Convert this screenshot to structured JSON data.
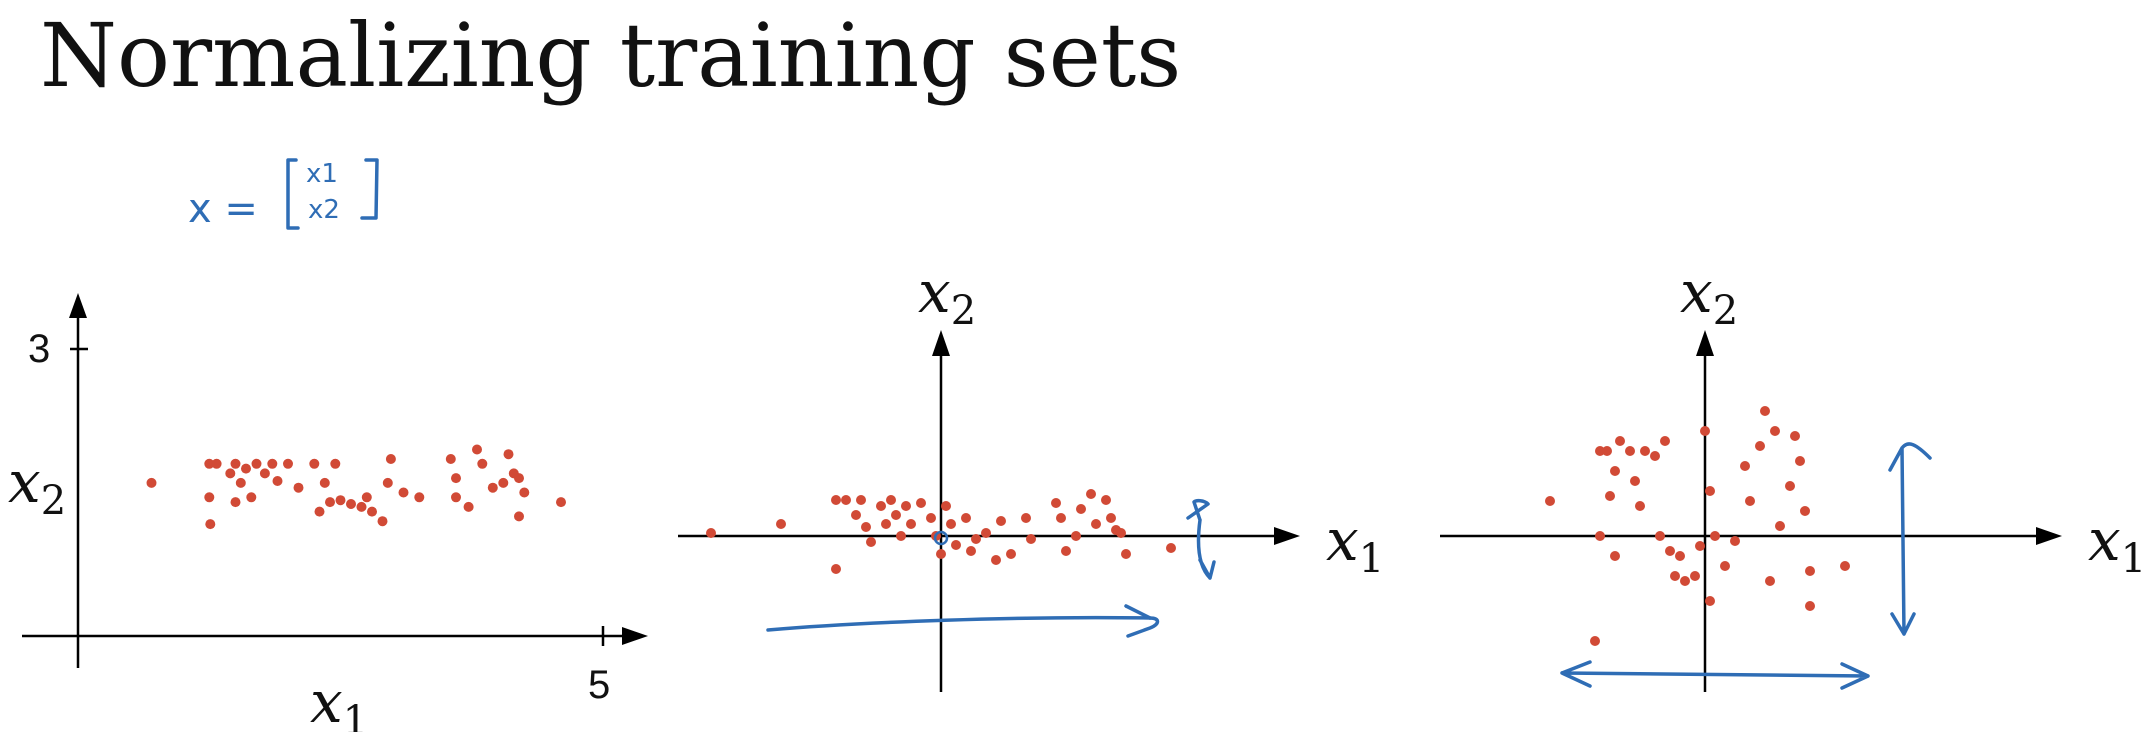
{
  "title": "Normalizing training sets",
  "annotation": {
    "lhs": "x =",
    "row1": "x1",
    "row2": "x2"
  },
  "panels": [
    {
      "x_label": "x",
      "x_sub": "1",
      "y_label": "x",
      "y_sub": "2",
      "x_tick": "5",
      "y_tick": "3"
    },
    {
      "x_label": "x",
      "x_sub": "1",
      "y_label": "x",
      "y_sub": "2"
    },
    {
      "x_label": "x",
      "x_sub": "1",
      "y_label": "x",
      "y_sub": "2"
    }
  ],
  "chart_data": [
    {
      "type": "scatter",
      "title": "",
      "xlabel": "x1",
      "ylabel": "x2",
      "xlim": [
        0,
        5
      ],
      "ylim": [
        0,
        3
      ],
      "points": [
        [
          0.7,
          1.6
        ],
        [
          1.25,
          1.8
        ],
        [
          1.32,
          1.8
        ],
        [
          1.25,
          1.45
        ],
        [
          1.26,
          1.17
        ],
        [
          1.45,
          1.7
        ],
        [
          1.5,
          1.8
        ],
        [
          1.55,
          1.6
        ],
        [
          1.6,
          1.75
        ],
        [
          1.7,
          1.8
        ],
        [
          1.78,
          1.7
        ],
        [
          1.85,
          1.8
        ],
        [
          1.9,
          1.62
        ],
        [
          2.0,
          1.8
        ],
        [
          2.1,
          1.55
        ],
        [
          1.65,
          1.45
        ],
        [
          1.5,
          1.4
        ],
        [
          2.25,
          1.8
        ],
        [
          2.35,
          1.6
        ],
        [
          2.45,
          1.8
        ],
        [
          2.3,
          1.3
        ],
        [
          2.4,
          1.4
        ],
        [
          2.5,
          1.42
        ],
        [
          2.6,
          1.38
        ],
        [
          2.7,
          1.35
        ],
        [
          2.8,
          1.3
        ],
        [
          2.75,
          1.45
        ],
        [
          2.9,
          1.2
        ],
        [
          2.95,
          1.6
        ],
        [
          2.98,
          1.85
        ],
        [
          3.1,
          1.5
        ],
        [
          3.25,
          1.45
        ],
        [
          3.55,
          1.85
        ],
        [
          3.6,
          1.65
        ],
        [
          3.6,
          1.45
        ],
        [
          3.72,
          1.35
        ],
        [
          3.8,
          1.95
        ],
        [
          3.85,
          1.8
        ],
        [
          3.95,
          1.55
        ],
        [
          4.05,
          1.6
        ],
        [
          4.1,
          1.9
        ],
        [
          4.15,
          1.7
        ],
        [
          4.2,
          1.65
        ],
        [
          4.25,
          1.5
        ],
        [
          4.2,
          1.25
        ],
        [
          4.6,
          1.4
        ]
      ]
    },
    {
      "type": "scatter",
      "title": "",
      "xlabel": "x1",
      "ylabel": "x2",
      "points": [
        [
          -2.3,
          0.05
        ],
        [
          -1.6,
          0.2
        ],
        [
          -1.05,
          0.6
        ],
        [
          -1.05,
          -0.55
        ],
        [
          -0.95,
          0.6
        ],
        [
          -0.85,
          0.35
        ],
        [
          -0.8,
          0.6
        ],
        [
          -0.75,
          0.15
        ],
        [
          -0.7,
          -0.1
        ],
        [
          -0.6,
          0.5
        ],
        [
          -0.55,
          0.2
        ],
        [
          -0.5,
          0.6
        ],
        [
          -0.45,
          0.35
        ],
        [
          -0.4,
          0.0
        ],
        [
          -0.35,
          0.5
        ],
        [
          -0.3,
          0.2
        ],
        [
          -0.2,
          0.55
        ],
        [
          -0.1,
          0.3
        ],
        [
          -0.05,
          0.0
        ],
        [
          0.0,
          -0.3
        ],
        [
          0.05,
          0.5
        ],
        [
          0.1,
          0.2
        ],
        [
          0.15,
          -0.15
        ],
        [
          0.25,
          0.3
        ],
        [
          0.3,
          -0.25
        ],
        [
          0.35,
          -0.05
        ],
        [
          0.45,
          0.05
        ],
        [
          0.55,
          -0.4
        ],
        [
          0.6,
          0.25
        ],
        [
          0.7,
          -0.3
        ],
        [
          0.85,
          0.3
        ],
        [
          0.9,
          -0.05
        ],
        [
          1.15,
          0.55
        ],
        [
          1.2,
          0.3
        ],
        [
          1.25,
          -0.25
        ],
        [
          1.35,
          0.0
        ],
        [
          1.4,
          0.45
        ],
        [
          1.5,
          0.7
        ],
        [
          1.55,
          0.2
        ],
        [
          1.65,
          0.6
        ],
        [
          1.7,
          0.3
        ],
        [
          1.75,
          0.1
        ],
        [
          1.85,
          -0.3
        ],
        [
          1.8,
          0.05
        ],
        [
          2.3,
          -0.2
        ]
      ]
    },
    {
      "type": "scatter",
      "title": "",
      "xlabel": "x1",
      "ylabel": "x2",
      "points": [
        [
          -1.55,
          0.35
        ],
        [
          -1.05,
          0.85
        ],
        [
          -0.98,
          0.85
        ],
        [
          -0.9,
          0.65
        ],
        [
          -0.95,
          0.4
        ],
        [
          -0.85,
          0.95
        ],
        [
          -0.75,
          0.85
        ],
        [
          -0.7,
          0.55
        ],
        [
          -0.65,
          0.3
        ],
        [
          -0.6,
          0.85
        ],
        [
          -0.5,
          0.8
        ],
        [
          -0.45,
          0.0
        ],
        [
          -0.4,
          0.95
        ],
        [
          -1.05,
          0.0
        ],
        [
          -0.9,
          -0.2
        ],
        [
          -0.35,
          -0.15
        ],
        [
          -0.3,
          -0.4
        ],
        [
          -0.25,
          -0.2
        ],
        [
          -0.2,
          -0.45
        ],
        [
          -0.1,
          -0.4
        ],
        [
          -0.05,
          -0.1
        ],
        [
          0.05,
          -0.65
        ],
        [
          0.0,
          1.05
        ],
        [
          0.05,
          0.45
        ],
        [
          0.1,
          0.0
        ],
        [
          0.2,
          -0.3
        ],
        [
          0.3,
          -0.05
        ],
        [
          0.4,
          0.7
        ],
        [
          0.45,
          0.35
        ],
        [
          0.55,
          0.9
        ],
        [
          0.6,
          1.25
        ],
        [
          0.7,
          1.05
        ],
        [
          0.75,
          0.1
        ],
        [
          0.65,
          -0.45
        ],
        [
          0.85,
          0.5
        ],
        [
          0.9,
          1.0
        ],
        [
          0.95,
          0.75
        ],
        [
          1.0,
          0.25
        ],
        [
          1.05,
          -0.35
        ],
        [
          1.05,
          -0.7
        ],
        [
          1.4,
          -0.3
        ],
        [
          -1.1,
          -1.05
        ]
      ]
    }
  ]
}
